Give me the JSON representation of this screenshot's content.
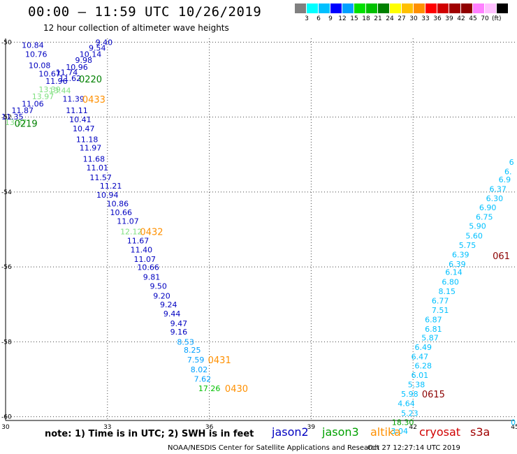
{
  "header": {
    "title": "00:00 – 11:59 UTC 10/26/2019",
    "subtitle": "12 hour collection of altimeter wave heights"
  },
  "scale": {
    "colors": [
      "#808080",
      "#00ffff",
      "#00c0ff",
      "#0000ff",
      "#00a0ff",
      "#00e000",
      "#00c000",
      "#008000",
      "#ffff00",
      "#ffc000",
      "#ff9000",
      "#ff0000",
      "#d00000",
      "#a00000",
      "#900000",
      "#ff80ff",
      "#ffc0ff",
      "#000000"
    ],
    "labels": [
      "3",
      "6",
      "9",
      "12",
      "15",
      "18",
      "21",
      "24",
      "27",
      "30",
      "33",
      "36",
      "39",
      "42",
      "45",
      "70"
    ],
    "unit": "(ft)"
  },
  "axes": {
    "x_ticks": [
      "30",
      "33",
      "36",
      "39",
      "42",
      "45"
    ],
    "y_ticks": [
      "-50",
      "-52",
      "-54",
      "-56",
      "-58",
      "-60"
    ]
  },
  "chart_data": {
    "type": "scatter",
    "xlim": [
      30,
      45
    ],
    "ylim": [
      -60.1,
      -49.9
    ],
    "grid": true,
    "points": [
      {
        "lon": 30.8,
        "lat": -50.08,
        "v": "10.84",
        "c": "#0000c0"
      },
      {
        "lon": 32.9,
        "lat": -50.0,
        "v": "9.40",
        "c": "#0000c0"
      },
      {
        "lon": 32.7,
        "lat": -50.15,
        "v": "9.54",
        "c": "#0000c0"
      },
      {
        "lon": 30.9,
        "lat": -50.32,
        "v": "10.76",
        "c": "#0000c0"
      },
      {
        "lon": 32.5,
        "lat": -50.32,
        "v": "10.14",
        "c": "#0000c0"
      },
      {
        "lon": 32.3,
        "lat": -50.48,
        "v": "9.98",
        "c": "#0000c0"
      },
      {
        "lon": 31.0,
        "lat": -50.62,
        "v": "10.08",
        "c": "#0000c0"
      },
      {
        "lon": 32.1,
        "lat": -50.66,
        "v": "10.96",
        "c": "#0000c0"
      },
      {
        "lon": 31.8,
        "lat": -50.8,
        "v": "11.74",
        "c": "#0000c0"
      },
      {
        "lon": 31.3,
        "lat": -50.84,
        "v": "10.67",
        "c": "#0000c0"
      },
      {
        "lon": 31.9,
        "lat": -50.96,
        "v": "11.62",
        "c": "#0000c0"
      },
      {
        "lon": 31.5,
        "lat": -51.04,
        "v": "11.96",
        "c": "#0000c0"
      },
      {
        "lon": 31.3,
        "lat": -51.26,
        "v": "13.39",
        "c": "#80e080"
      },
      {
        "lon": 31.6,
        "lat": -51.29,
        "v": "13.44",
        "c": "#80e080"
      },
      {
        "lon": 31.1,
        "lat": -51.45,
        "v": "13.97",
        "c": "#80e080"
      },
      {
        "lon": 32.0,
        "lat": -51.51,
        "v": "11.39",
        "c": "#0000c0"
      },
      {
        "lon": 30.8,
        "lat": -51.64,
        "v": "11.06",
        "c": "#0000c0"
      },
      {
        "lon": 30.5,
        "lat": -51.82,
        "v": "11.87",
        "c": "#0000c0"
      },
      {
        "lon": 32.1,
        "lat": -51.82,
        "v": "11.11",
        "c": "#0000c0"
      },
      {
        "lon": 30.2,
        "lat": -51.99,
        "v": "11.35",
        "c": "#0000c0"
      },
      {
        "lon": 32.2,
        "lat": -52.06,
        "v": "10.41",
        "c": "#0000c0"
      },
      {
        "lon": 30.3,
        "lat": -52.14,
        "v": "13.37",
        "c": "#80e080"
      },
      {
        "lon": 32.3,
        "lat": -52.31,
        "v": "10.47",
        "c": "#0000c0"
      },
      {
        "lon": 32.4,
        "lat": -52.59,
        "v": "11.18",
        "c": "#0000c0"
      },
      {
        "lon": 32.5,
        "lat": -52.82,
        "v": "11.97",
        "c": "#0000c0"
      },
      {
        "lon": 32.6,
        "lat": -53.12,
        "v": "11.68",
        "c": "#0000c0"
      },
      {
        "lon": 32.7,
        "lat": -53.35,
        "v": "11.01",
        "c": "#0000c0"
      },
      {
        "lon": 32.8,
        "lat": -53.61,
        "v": "11.57",
        "c": "#0000c0"
      },
      {
        "lon": 33.1,
        "lat": -53.83,
        "v": "11.21",
        "c": "#0000c0"
      },
      {
        "lon": 33.0,
        "lat": -54.08,
        "v": "10.94",
        "c": "#0000c0"
      },
      {
        "lon": 33.3,
        "lat": -54.31,
        "v": "10.86",
        "c": "#0000c0"
      },
      {
        "lon": 33.4,
        "lat": -54.54,
        "v": "10.66",
        "c": "#0000c0"
      },
      {
        "lon": 33.6,
        "lat": -54.78,
        "v": "11.07",
        "c": "#0000c0"
      },
      {
        "lon": 33.7,
        "lat": -55.06,
        "v": "12.12",
        "c": "#80e080"
      },
      {
        "lon": 33.9,
        "lat": -55.3,
        "v": "11.67",
        "c": "#0000c0"
      },
      {
        "lon": 34.0,
        "lat": -55.54,
        "v": "11.40",
        "c": "#0000c0"
      },
      {
        "lon": 34.1,
        "lat": -55.79,
        "v": "11.07",
        "c": "#0000c0"
      },
      {
        "lon": 34.2,
        "lat": -56.01,
        "v": "10.66",
        "c": "#0000c0"
      },
      {
        "lon": 34.3,
        "lat": -56.27,
        "v": "9.81",
        "c": "#0000c0"
      },
      {
        "lon": 34.5,
        "lat": -56.51,
        "v": "9.50",
        "c": "#0000c0"
      },
      {
        "lon": 34.6,
        "lat": -56.77,
        "v": "9.20",
        "c": "#0000c0"
      },
      {
        "lon": 34.8,
        "lat": -57.0,
        "v": "9.24",
        "c": "#0000c0"
      },
      {
        "lon": 34.9,
        "lat": -57.25,
        "v": "9.44",
        "c": "#0000c0"
      },
      {
        "lon": 35.1,
        "lat": -57.51,
        "v": "9.47",
        "c": "#0000c0"
      },
      {
        "lon": 35.1,
        "lat": -57.73,
        "v": "9.16",
        "c": "#0000c0"
      },
      {
        "lon": 35.3,
        "lat": -58.0,
        "v": "8.53",
        "c": "#00a0ff"
      },
      {
        "lon": 35.5,
        "lat": -58.22,
        "v": "8.25",
        "c": "#00a0ff"
      },
      {
        "lon": 35.6,
        "lat": -58.48,
        "v": "7.59",
        "c": "#00a0ff"
      },
      {
        "lon": 35.7,
        "lat": -58.74,
        "v": "8.02",
        "c": "#00a0ff"
      },
      {
        "lon": 35.8,
        "lat": -58.99,
        "v": "7.62",
        "c": "#00a0ff"
      },
      {
        "lon": 36.0,
        "lat": -59.24,
        "v": "17.26",
        "c": "#00c000"
      },
      {
        "lon": 44.9,
        "lat": -53.2,
        "v": "6",
        "c": "#00c0ff"
      },
      {
        "lon": 44.8,
        "lat": -53.45,
        "v": "6.",
        "c": "#00c0ff"
      },
      {
        "lon": 44.7,
        "lat": -53.67,
        "v": "6.9",
        "c": "#00c0ff"
      },
      {
        "lon": 44.5,
        "lat": -53.92,
        "v": "6.37",
        "c": "#00c0ff"
      },
      {
        "lon": 44.4,
        "lat": -54.17,
        "v": "6.30",
        "c": "#00c0ff"
      },
      {
        "lon": 44.2,
        "lat": -54.41,
        "v": "6.90",
        "c": "#00c0ff"
      },
      {
        "lon": 44.1,
        "lat": -54.66,
        "v": "6.75",
        "c": "#00c0ff"
      },
      {
        "lon": 43.9,
        "lat": -54.91,
        "v": "5.90",
        "c": "#00c0ff"
      },
      {
        "lon": 43.8,
        "lat": -55.17,
        "v": "5.60",
        "c": "#00c0ff"
      },
      {
        "lon": 43.6,
        "lat": -55.42,
        "v": "5.75",
        "c": "#00c0ff"
      },
      {
        "lon": 43.4,
        "lat": -55.67,
        "v": "6.39",
        "c": "#00c0ff"
      },
      {
        "lon": 43.3,
        "lat": -55.92,
        "v": "6.39",
        "c": "#00c0ff"
      },
      {
        "lon": 43.2,
        "lat": -56.14,
        "v": "6.14",
        "c": "#00c0ff"
      },
      {
        "lon": 43.1,
        "lat": -56.4,
        "v": "6.80",
        "c": "#00c0ff"
      },
      {
        "lon": 43.0,
        "lat": -56.65,
        "v": "8.15",
        "c": "#00c0ff"
      },
      {
        "lon": 42.8,
        "lat": -56.9,
        "v": "6.77",
        "c": "#00c0ff"
      },
      {
        "lon": 42.8,
        "lat": -57.15,
        "v": "7.51",
        "c": "#00c0ff"
      },
      {
        "lon": 42.6,
        "lat": -57.41,
        "v": "6.87",
        "c": "#00c0ff"
      },
      {
        "lon": 42.6,
        "lat": -57.66,
        "v": "6.81",
        "c": "#00c0ff"
      },
      {
        "lon": 42.5,
        "lat": -57.89,
        "v": "5.87",
        "c": "#00c0ff"
      },
      {
        "lon": 42.3,
        "lat": -58.14,
        "v": "6.49",
        "c": "#00c0ff"
      },
      {
        "lon": 42.2,
        "lat": -58.39,
        "v": "6.47",
        "c": "#00c0ff"
      },
      {
        "lon": 42.3,
        "lat": -58.64,
        "v": "6.28",
        "c": "#00c0ff"
      },
      {
        "lon": 42.2,
        "lat": -58.89,
        "v": "6.01",
        "c": "#00c0ff"
      },
      {
        "lon": 42.1,
        "lat": -59.14,
        "v": "5.38",
        "c": "#00c0ff"
      },
      {
        "lon": 41.9,
        "lat": -59.39,
        "v": "5.98",
        "c": "#00c0ff"
      },
      {
        "lon": 41.8,
        "lat": -59.64,
        "v": "4.64",
        "c": "#00c0ff"
      },
      {
        "lon": 41.9,
        "lat": -59.9,
        "v": "5.23",
        "c": "#00c0ff"
      },
      {
        "lon": 41.7,
        "lat": -60.15,
        "v": "18.30",
        "c": "#00a000"
      },
      {
        "lon": 41.6,
        "lat": -60.38,
        "v": "3.04",
        "c": "#00c0ff"
      },
      {
        "lon": 44.95,
        "lat": -60.15,
        "v": "0",
        "c": "#00c0ff"
      }
    ],
    "time_labels": [
      {
        "lon": 32.5,
        "lat": -50.98,
        "t": "0220",
        "c": "#008000"
      },
      {
        "lon": 32.6,
        "lat": -51.52,
        "t": "0433",
        "c": "#ff9000"
      },
      {
        "lon": 30.6,
        "lat": -52.17,
        "t": "0219",
        "c": "#008000"
      },
      {
        "lon": 34.3,
        "lat": -55.06,
        "t": "0432",
        "c": "#ff9000"
      },
      {
        "lon": 36.3,
        "lat": -58.48,
        "t": "0431",
        "c": "#ff9000"
      },
      {
        "lon": 36.8,
        "lat": -59.24,
        "t": "0430",
        "c": "#ff9000"
      },
      {
        "lon": 44.6,
        "lat": -55.7,
        "t": "061",
        "c": "#8b0000"
      },
      {
        "lon": 42.6,
        "lat": -59.39,
        "t": "0615",
        "c": "#8b0000"
      }
    ]
  },
  "legend": {
    "note": "note:  1) Time is in UTC;  2) SWH is in feet",
    "satellites": [
      {
        "name": "jason2",
        "color": "#0000c0"
      },
      {
        "name": "jason3",
        "color": "#00a000"
      },
      {
        "name": "altika",
        "color": "#ff9000"
      },
      {
        "name": "cryosat",
        "color": "#d00000"
      },
      {
        "name": "s3a",
        "color": "#a00000"
      }
    ]
  },
  "footer": {
    "left": "NOAA/NESDIS Center for Satellite Applications and Research",
    "right": "Oct 27 12:27:14 UTC 2019"
  }
}
